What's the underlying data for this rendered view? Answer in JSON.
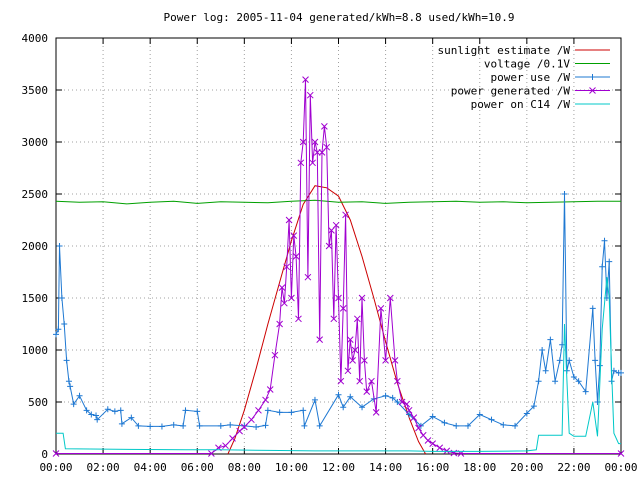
{
  "chart_data": {
    "type": "line",
    "title": "Power log: 2005-11-04 generated/kWh=8.8 used/kWh=10.9",
    "xlabel": "",
    "ylabel": "",
    "xlim": [
      0,
      24
    ],
    "ylim": [
      0,
      4000
    ],
    "grid": true,
    "legend_position": "top-right",
    "x_ticks": [
      "00:00",
      "02:00",
      "04:00",
      "06:00",
      "08:00",
      "10:00",
      "12:00",
      "14:00",
      "16:00",
      "18:00",
      "20:00",
      "22:00",
      "00:00"
    ],
    "y_ticks": [
      "0",
      "500",
      "1000",
      "1500",
      "2000",
      "2500",
      "3000",
      "3500",
      "4000"
    ],
    "series": [
      {
        "name": "sunlight estimate /W",
        "color": "#cc0000",
        "style": "line",
        "points": [
          [
            7.3,
            0
          ],
          [
            7.6,
            150
          ],
          [
            8.0,
            420
          ],
          [
            8.5,
            820
          ],
          [
            9.0,
            1250
          ],
          [
            9.5,
            1650
          ],
          [
            10.0,
            2050
          ],
          [
            10.5,
            2400
          ],
          [
            11.0,
            2580
          ],
          [
            11.5,
            2560
          ],
          [
            12.0,
            2480
          ],
          [
            12.5,
            2250
          ],
          [
            13.0,
            1900
          ],
          [
            13.5,
            1500
          ],
          [
            14.0,
            1080
          ],
          [
            14.5,
            680
          ],
          [
            15.0,
            350
          ],
          [
            15.4,
            120
          ],
          [
            15.7,
            0
          ]
        ]
      },
      {
        "name": "voltage /0.1V",
        "color": "#00a000",
        "style": "line",
        "points": [
          [
            0,
            2430
          ],
          [
            1,
            2420
          ],
          [
            2,
            2425
          ],
          [
            3,
            2405
          ],
          [
            4,
            2420
          ],
          [
            5,
            2430
          ],
          [
            6,
            2410
          ],
          [
            7,
            2425
          ],
          [
            8,
            2420
          ],
          [
            9,
            2415
          ],
          [
            10,
            2430
          ],
          [
            11,
            2440
          ],
          [
            12,
            2420
          ],
          [
            13,
            2425
          ],
          [
            14,
            2410
          ],
          [
            15,
            2420
          ],
          [
            16,
            2425
          ],
          [
            17,
            2430
          ],
          [
            18,
            2420
          ],
          [
            19,
            2425
          ],
          [
            20,
            2415
          ],
          [
            21,
            2420
          ],
          [
            22,
            2425
          ],
          [
            23,
            2430
          ],
          [
            24,
            2430
          ]
        ]
      },
      {
        "name": "power use /W",
        "color": "#1e78d2",
        "style": "linepoints",
        "marker": "plus",
        "points": [
          [
            0,
            1150
          ],
          [
            0.1,
            1200
          ],
          [
            0.15,
            2000
          ],
          [
            0.25,
            1500
          ],
          [
            0.35,
            1250
          ],
          [
            0.45,
            900
          ],
          [
            0.55,
            700
          ],
          [
            0.6,
            650
          ],
          [
            0.75,
            480
          ],
          [
            1.0,
            560
          ],
          [
            1.3,
            420
          ],
          [
            1.5,
            380
          ],
          [
            1.7,
            370
          ],
          [
            1.75,
            330
          ],
          [
            2.2,
            430
          ],
          [
            2.5,
            410
          ],
          [
            2.75,
            420
          ],
          [
            2.8,
            290
          ],
          [
            3.2,
            350
          ],
          [
            3.5,
            270
          ],
          [
            4.0,
            265
          ],
          [
            4.5,
            265
          ],
          [
            5.0,
            280
          ],
          [
            5.4,
            270
          ],
          [
            5.5,
            420
          ],
          [
            6.0,
            410
          ],
          [
            6.1,
            270
          ],
          [
            7.0,
            270
          ],
          [
            7.4,
            280
          ],
          [
            8.0,
            270
          ],
          [
            8.5,
            260
          ],
          [
            8.9,
            275
          ],
          [
            9.0,
            420
          ],
          [
            9.5,
            400
          ],
          [
            10.0,
            400
          ],
          [
            10.5,
            420
          ],
          [
            10.55,
            270
          ],
          [
            11.0,
            520
          ],
          [
            11.2,
            270
          ],
          [
            12.0,
            570
          ],
          [
            12.2,
            450
          ],
          [
            12.5,
            550
          ],
          [
            13.0,
            450
          ],
          [
            13.5,
            530
          ],
          [
            14.0,
            560
          ],
          [
            14.3,
            540
          ],
          [
            14.5,
            500
          ],
          [
            15.0,
            380
          ],
          [
            15.5,
            270
          ],
          [
            16.0,
            360
          ],
          [
            16.5,
            300
          ],
          [
            17.0,
            270
          ],
          [
            17.5,
            270
          ],
          [
            18.0,
            380
          ],
          [
            18.5,
            330
          ],
          [
            19.0,
            280
          ],
          [
            19.5,
            270
          ],
          [
            20.0,
            390
          ],
          [
            20.3,
            460
          ],
          [
            20.5,
            700
          ],
          [
            20.65,
            1000
          ],
          [
            20.8,
            800
          ],
          [
            21.0,
            1100
          ],
          [
            21.2,
            700
          ],
          [
            21.4,
            900
          ],
          [
            21.5,
            1050
          ],
          [
            21.6,
            2500
          ],
          [
            21.7,
            800
          ],
          [
            21.8,
            900
          ],
          [
            22.0,
            740
          ],
          [
            22.2,
            700
          ],
          [
            22.5,
            600
          ],
          [
            22.8,
            1400
          ],
          [
            22.9,
            900
          ],
          [
            23.0,
            500
          ],
          [
            23.1,
            850
          ],
          [
            23.2,
            1800
          ],
          [
            23.3,
            2050
          ],
          [
            23.4,
            1500
          ],
          [
            23.5,
            1850
          ],
          [
            23.6,
            700
          ],
          [
            23.7,
            800
          ],
          [
            23.9,
            780
          ],
          [
            24.0,
            780
          ]
        ]
      },
      {
        "name": "power generated /W",
        "color": "#a000d0",
        "style": "linepoints",
        "marker": "cross",
        "points": [
          [
            0,
            5
          ],
          [
            6.6,
            5
          ],
          [
            6.9,
            60
          ],
          [
            7.2,
            80
          ],
          [
            7.5,
            150
          ],
          [
            7.8,
            220
          ],
          [
            8.0,
            260
          ],
          [
            8.3,
            330
          ],
          [
            8.6,
            420
          ],
          [
            8.9,
            520
          ],
          [
            9.1,
            620
          ],
          [
            9.3,
            950
          ],
          [
            9.5,
            1250
          ],
          [
            9.6,
            1600
          ],
          [
            9.7,
            1450
          ],
          [
            9.8,
            1800
          ],
          [
            9.9,
            2250
          ],
          [
            10.0,
            1500
          ],
          [
            10.1,
            2100
          ],
          [
            10.2,
            1900
          ],
          [
            10.3,
            1300
          ],
          [
            10.4,
            2800
          ],
          [
            10.5,
            3000
          ],
          [
            10.6,
            3600
          ],
          [
            10.7,
            1700
          ],
          [
            10.8,
            3450
          ],
          [
            10.9,
            2800
          ],
          [
            11.0,
            3000
          ],
          [
            11.1,
            2900
          ],
          [
            11.2,
            1100
          ],
          [
            11.3,
            2900
          ],
          [
            11.4,
            3150
          ],
          [
            11.5,
            2950
          ],
          [
            11.6,
            2000
          ],
          [
            11.7,
            2150
          ],
          [
            11.8,
            1300
          ],
          [
            11.9,
            2200
          ],
          [
            12.0,
            1500
          ],
          [
            12.1,
            700
          ],
          [
            12.2,
            1400
          ],
          [
            12.3,
            2300
          ],
          [
            12.4,
            800
          ],
          [
            12.5,
            1100
          ],
          [
            12.6,
            900
          ],
          [
            12.7,
            1000
          ],
          [
            12.8,
            1300
          ],
          [
            12.9,
            700
          ],
          [
            13.0,
            1500
          ],
          [
            13.1,
            900
          ],
          [
            13.2,
            600
          ],
          [
            13.4,
            700
          ],
          [
            13.6,
            400
          ],
          [
            13.8,
            1400
          ],
          [
            14.0,
            900
          ],
          [
            14.2,
            1500
          ],
          [
            14.4,
            900
          ],
          [
            14.5,
            700
          ],
          [
            14.7,
            500
          ],
          [
            14.9,
            480
          ],
          [
            15.0,
            420
          ],
          [
            15.2,
            350
          ],
          [
            15.4,
            250
          ],
          [
            15.6,
            180
          ],
          [
            15.8,
            130
          ],
          [
            16.0,
            100
          ],
          [
            16.3,
            60
          ],
          [
            16.6,
            30
          ],
          [
            16.9,
            10
          ],
          [
            17.2,
            5
          ],
          [
            24,
            5
          ]
        ]
      },
      {
        "name": "power on C14 /W",
        "color": "#00c8c8",
        "style": "line",
        "points": [
          [
            0,
            200
          ],
          [
            0.3,
            200
          ],
          [
            0.4,
            50
          ],
          [
            5.5,
            40
          ],
          [
            7.0,
            40
          ],
          [
            9.0,
            35
          ],
          [
            11.0,
            30
          ],
          [
            13.0,
            30
          ],
          [
            15.0,
            30
          ],
          [
            16.0,
            25
          ],
          [
            18.0,
            25
          ],
          [
            20.0,
            30
          ],
          [
            20.4,
            40
          ],
          [
            20.5,
            180
          ],
          [
            21.5,
            180
          ],
          [
            21.6,
            1250
          ],
          [
            21.8,
            200
          ],
          [
            22.0,
            170
          ],
          [
            22.5,
            170
          ],
          [
            22.8,
            500
          ],
          [
            23.0,
            170
          ],
          [
            23.2,
            1200
          ],
          [
            23.4,
            1700
          ],
          [
            23.5,
            1500
          ],
          [
            23.6,
            800
          ],
          [
            23.7,
            200
          ],
          [
            23.9,
            100
          ],
          [
            24.0,
            100
          ]
        ]
      }
    ]
  }
}
